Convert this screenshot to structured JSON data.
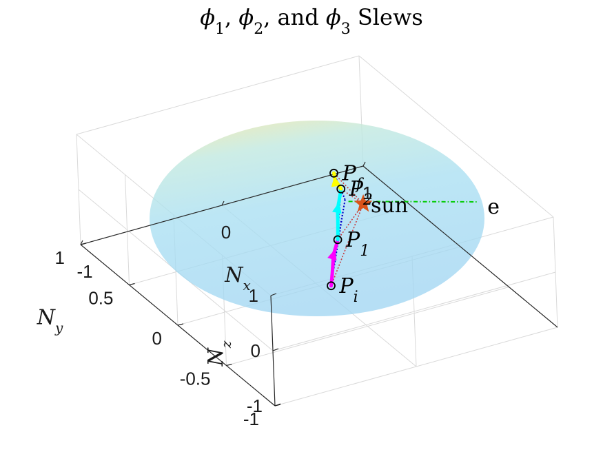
{
  "chart_data": {
    "type": "3d-trajectory",
    "title": "ϕ1, ϕ2, and ϕ3 Slews",
    "title_parts": [
      {
        "t": "ϕ",
        "it": true
      },
      {
        "t": "1",
        "sub": true
      },
      {
        "t": ", "
      },
      {
        "t": "ϕ",
        "it": true
      },
      {
        "t": "2",
        "sub": true
      },
      {
        "t": ", and "
      },
      {
        "t": "ϕ",
        "it": true
      },
      {
        "t": "3",
        "sub": true
      },
      {
        "t": " Slews"
      }
    ],
    "axes": {
      "x": {
        "label": "N",
        "label_sub": "x",
        "lim": [
          -1,
          1
        ],
        "ticks": [
          {
            "v": -1,
            "label": "-1"
          },
          {
            "v": 0,
            "label": "0"
          },
          {
            "v": 1,
            "label": "1"
          }
        ]
      },
      "y": {
        "label": "N",
        "label_sub": "y",
        "lim": [
          -1,
          1
        ],
        "ticks": [
          {
            "v": -1,
            "label": "-1"
          },
          {
            "v": -0.5,
            "label": "-0.5"
          },
          {
            "v": 0,
            "label": "0"
          },
          {
            "v": 0.5,
            "label": "0.5"
          },
          {
            "v": 1,
            "label": "1"
          }
        ]
      },
      "z": {
        "label": "N",
        "label_sub": "z",
        "lim": [
          -1,
          1
        ],
        "ticks": [
          {
            "v": -1,
            "label": "-1"
          },
          {
            "v": 0,
            "label": "0"
          },
          {
            "v": 1,
            "label": "1"
          }
        ]
      },
      "grid": true,
      "projection": {
        "azimuth_deg": 28,
        "elevation_deg": 60
      }
    },
    "sphere": {
      "radius": 1,
      "colormap": "parula",
      "alpha": 0.22
    },
    "points": [
      {
        "name": "P",
        "sub": "i",
        "xyz": [
          -0.43,
          -0.78,
          0.45
        ]
      },
      {
        "name": "P",
        "sub": "1",
        "xyz": [
          -0.22,
          -0.55,
          0.8
        ]
      },
      {
        "name": "P",
        "sub": "2",
        "xyz": [
          0.06,
          -0.18,
          0.98
        ]
      },
      {
        "name": "P",
        "sub": "f",
        "xyz": [
          0.12,
          -0.02,
          0.99
        ]
      }
    ],
    "sun": {
      "label": "sun",
      "xyz": [
        0.1,
        -0.35,
        0.93
      ],
      "color": "#d95319"
    },
    "earth_line": {
      "label": "e",
      "from": [
        0.03,
        -0.3,
        0.95
      ],
      "to": [
        1.0,
        -0.21,
        0.12
      ],
      "color": "#00cc00"
    },
    "slews": [
      {
        "name": "ϕ1",
        "from_index": 0,
        "to_index": 1,
        "color": "#ff00ff"
      },
      {
        "name": "ϕ2",
        "from_index": 1,
        "to_index": 2,
        "color": "#00ffff"
      },
      {
        "name": "ϕ3",
        "from_index": 2,
        "to_index": 3,
        "color": "#ffff00"
      }
    ],
    "connector_colors": {
      "blue": "#0000c8",
      "red": "#c81e1e"
    }
  }
}
